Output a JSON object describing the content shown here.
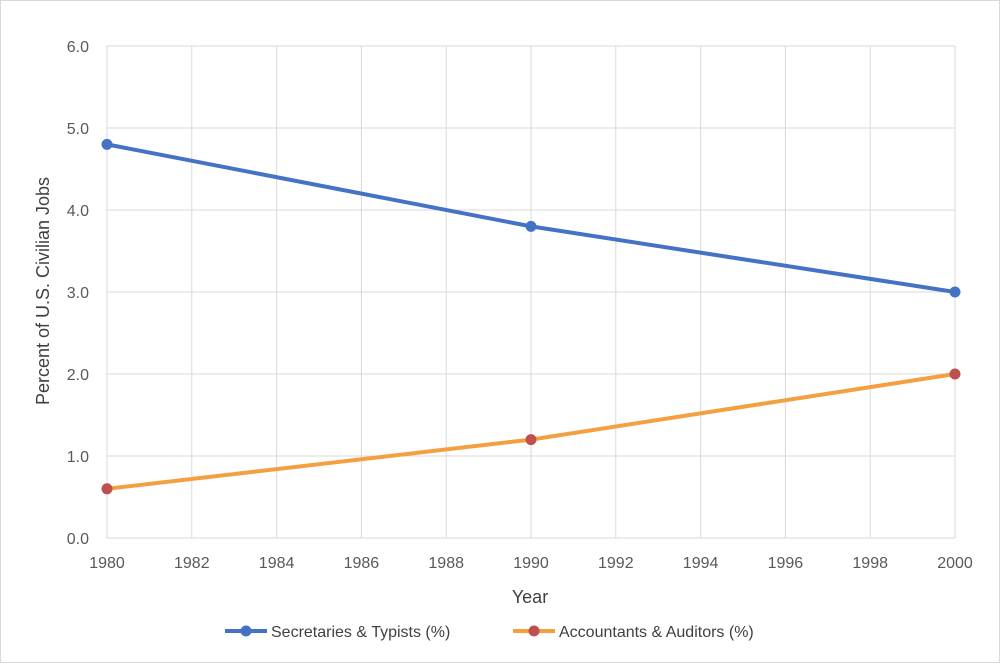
{
  "chart_data": {
    "type": "line",
    "title": "",
    "xlabel": "Year",
    "ylabel": "Percent of U.S. Civilian Jobs",
    "xlim": [
      1980,
      2000
    ],
    "ylim": [
      0,
      6
    ],
    "x_ticks": [
      "1980",
      "1982",
      "1984",
      "1986",
      "1988",
      "1990",
      "1992",
      "1994",
      "1996",
      "1998",
      "2000"
    ],
    "y_ticks": [
      "0.0",
      "1.0",
      "2.0",
      "3.0",
      "4.0",
      "5.0",
      "6.0"
    ],
    "grid": true,
    "legend_position": "bottom",
    "series": [
      {
        "name": "Secretaries & Typists (%)",
        "color": "#4472c4",
        "marker_color": "#4472c4",
        "x": [
          1980,
          1990,
          2000
        ],
        "values": [
          4.8,
          3.8,
          3.0
        ]
      },
      {
        "name": "Accountants & Auditors (%)",
        "color": "#f4a040",
        "marker_color": "#c0504d",
        "x": [
          1980,
          1990,
          2000
        ],
        "values": [
          0.6,
          1.2,
          2.0
        ]
      }
    ]
  }
}
